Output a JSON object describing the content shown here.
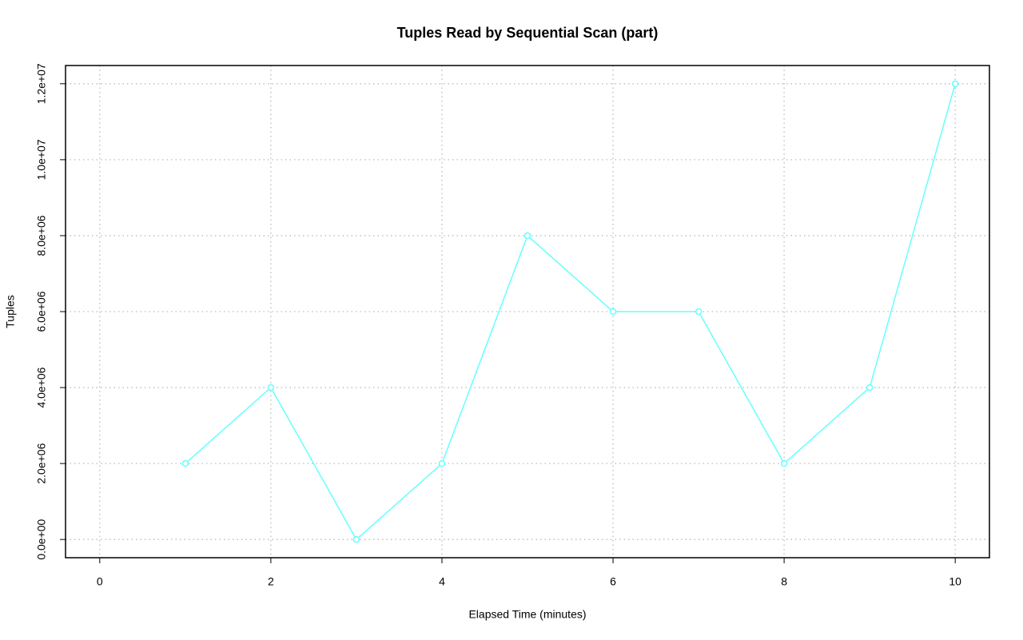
{
  "chart_data": {
    "type": "line",
    "title": "Tuples Read by Sequential Scan (part)",
    "x_label": "Elapsed Time (minutes)",
    "y_label": "Tuples",
    "x": [
      1,
      2,
      3,
      4,
      5,
      6,
      7,
      8,
      9,
      10
    ],
    "series": [
      {
        "name": "Tuples",
        "color": "#66ffff",
        "values": [
          2000000,
          4000000,
          0,
          2000000,
          8000000,
          6000000,
          6000000,
          2000000,
          4000000,
          12000000
        ]
      }
    ],
    "xlim": [
      -0.4,
      10.4
    ],
    "ylim": [
      -480000,
      12480000
    ],
    "xticks": [
      0,
      2,
      4,
      6,
      8,
      10
    ],
    "yticks": [
      {
        "value": 0,
        "label": "0.0e+00"
      },
      {
        "value": 2000000,
        "label": "2.0e+06"
      },
      {
        "value": 4000000,
        "label": "4.0e+06"
      },
      {
        "value": 6000000,
        "label": "6.0e+06"
      },
      {
        "value": 8000000,
        "label": "8.0e+06"
      },
      {
        "value": 10000000,
        "label": "1.0e+07"
      },
      {
        "value": 12000000,
        "label": "1.2e+07"
      }
    ],
    "grid": true
  }
}
